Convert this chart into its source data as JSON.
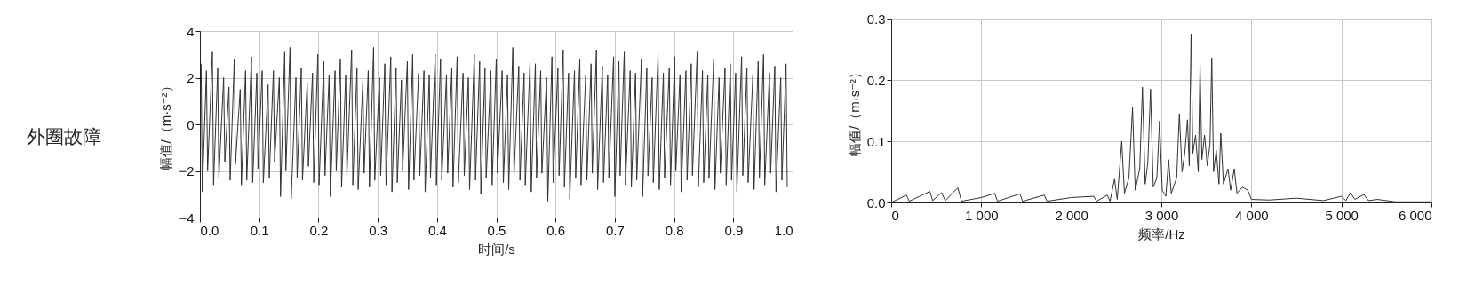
{
  "chart_data": [
    {
      "type": "other",
      "title": "外圈故障"
    },
    {
      "type": "line",
      "xlabel": "时间/s",
      "ylabel": "幅值/（m·s⁻²）",
      "xlim": [
        0,
        1
      ],
      "ylim": [
        -4,
        4
      ],
      "xticks": [
        {
          "value": 0,
          "label": "0.0"
        },
        0.1,
        0.2,
        0.3,
        0.4,
        0.5,
        0.6,
        0.7,
        0.8,
        0.9,
        {
          "value": 1,
          "label": "1.0"
        }
      ],
      "yticks": [
        -4,
        -2,
        0,
        2,
        4
      ],
      "grid": true,
      "series": [
        {
          "color": "#333333",
          "x": [
            0.002,
            0.004,
            0.011,
            0.013,
            0.021,
            0.023,
            0.03,
            0.032,
            0.04,
            0.042,
            0.049,
            0.051,
            0.058,
            0.06,
            0.068,
            0.07,
            0.077,
            0.079,
            0.087,
            0.089,
            0.096,
            0.098,
            0.105,
            0.107,
            0.115,
            0.117,
            0.124,
            0.126,
            0.134,
            0.136,
            0.143,
            0.145,
            0.152,
            0.154,
            0.162,
            0.164,
            0.171,
            0.173,
            0.181,
            0.183,
            0.19,
            0.192,
            0.199,
            0.201,
            0.209,
            0.211,
            0.218,
            0.22,
            0.228,
            0.23,
            0.237,
            0.239,
            0.246,
            0.248,
            0.256,
            0.258,
            0.265,
            0.267,
            0.275,
            0.277,
            0.284,
            0.286,
            0.293,
            0.295,
            0.303,
            0.305,
            0.312,
            0.314,
            0.322,
            0.324,
            0.331,
            0.333,
            0.34,
            0.342,
            0.35,
            0.352,
            0.359,
            0.361,
            0.369,
            0.371,
            0.378,
            0.38,
            0.387,
            0.389,
            0.397,
            0.399,
            0.406,
            0.408,
            0.416,
            0.418,
            0.425,
            0.427,
            0.434,
            0.436,
            0.444,
            0.446,
            0.453,
            0.455,
            0.463,
            0.465,
            0.472,
            0.474,
            0.481,
            0.483,
            0.491,
            0.493,
            0.5,
            0.502,
            0.51,
            0.512,
            0.519,
            0.521,
            0.528,
            0.53,
            0.538,
            0.54,
            0.547,
            0.549,
            0.557,
            0.559,
            0.566,
            0.568,
            0.575,
            0.577,
            0.585,
            0.587,
            0.594,
            0.596,
            0.604,
            0.606,
            0.613,
            0.615,
            0.622,
            0.624,
            0.632,
            0.634,
            0.641,
            0.643,
            0.651,
            0.653,
            0.66,
            0.662,
            0.669,
            0.671,
            0.679,
            0.681,
            0.688,
            0.69,
            0.698,
            0.7,
            0.707,
            0.709,
            0.716,
            0.718,
            0.726,
            0.728,
            0.735,
            0.737,
            0.745,
            0.747,
            0.754,
            0.756,
            0.763,
            0.765,
            0.773,
            0.775,
            0.782,
            0.784,
            0.792,
            0.794,
            0.801,
            0.803,
            0.81,
            0.812,
            0.82,
            0.822,
            0.829,
            0.831,
            0.839,
            0.841,
            0.848,
            0.85,
            0.857,
            0.859,
            0.867,
            0.869,
            0.876,
            0.878,
            0.886,
            0.888,
            0.895,
            0.897,
            0.904,
            0.906,
            0.914,
            0.916,
            0.923,
            0.925,
            0.933,
            0.935,
            0.942,
            0.944,
            0.951,
            0.953,
            0.961,
            0.963,
            0.97,
            0.972,
            0.98,
            0.982,
            0.989,
            0.991
          ],
          "values": [
            2.6,
            -2.9,
            2.3,
            -2.0,
            3.1,
            -2.6,
            2.4,
            -2.3,
            2.0,
            -1.6,
            1.6,
            -2.4,
            2.8,
            -1.7,
            1.5,
            -2.6,
            2.3,
            -2.4,
            2.9,
            -2.5,
            2.2,
            -1.9,
            2.3,
            -2.5,
            1.7,
            -2.3,
            2.3,
            -1.6,
            2.0,
            -3.1,
            3.1,
            -2.0,
            3.3,
            -3.2,
            2.0,
            -2.3,
            2.4,
            -2.4,
            1.8,
            -1.8,
            2.2,
            -2.5,
            3.0,
            -2.6,
            2.7,
            -2.2,
            2.1,
            -3.1,
            2.3,
            -2.0,
            2.8,
            -2.7,
            2.1,
            -2.2,
            3.2,
            -2.6,
            2.4,
            -2.8,
            1.9,
            -2.1,
            2.3,
            -2.7,
            3.3,
            -2.4,
            2.0,
            -2.2,
            2.6,
            -2.6,
            2.9,
            -2.9,
            2.4,
            -2.5,
            1.9,
            -2.0,
            2.7,
            -2.8,
            3.0,
            -2.4,
            2.2,
            -2.2,
            2.3,
            -2.9,
            2.1,
            -2.3,
            3.0,
            -2.6,
            2.8,
            -2.4,
            2.1,
            -2.1,
            2.4,
            -2.7,
            2.9,
            -2.5,
            2.2,
            -2.2,
            2.0,
            -2.8,
            3.0,
            -2.4,
            2.7,
            -3.0,
            2.4,
            -2.3,
            2.3,
            -2.6,
            2.8,
            -2.1,
            2.3,
            -2.5,
            2.1,
            -2.8,
            3.3,
            -2.2,
            2.5,
            -2.4,
            2.2,
            -2.6,
            2.7,
            -2.9,
            2.6,
            -2.3,
            2.3,
            -2.1,
            2.0,
            -3.3,
            2.9,
            -2.5,
            2.4,
            -2.2,
            3.2,
            -2.7,
            2.2,
            -3.2,
            2.3,
            -2.3,
            2.8,
            -2.6,
            2.1,
            -2.4,
            2.6,
            -2.1,
            3.2,
            -2.8,
            2.5,
            -2.5,
            2.1,
            -2.3,
            2.9,
            -3.1,
            2.7,
            -2.2,
            3.1,
            -2.6,
            2.3,
            -2.7,
            2.2,
            -2.4,
            2.8,
            -3.1,
            2.4,
            -2.2,
            2.0,
            -2.5,
            3.0,
            -2.8,
            2.2,
            -2.3,
            2.4,
            -2.6,
            2.9,
            -2.0,
            2.1,
            -2.9,
            2.3,
            -2.4,
            2.6,
            -2.2,
            3.1,
            -2.7,
            2.3,
            -2.5,
            2.1,
            -2.3,
            2.8,
            -2.8,
            2.0,
            -2.1,
            2.4,
            -2.6,
            2.6,
            -2.4,
            2.2,
            -2.9,
            2.9,
            -2.2,
            2.4,
            -2.5,
            2.1,
            -2.8,
            2.7,
            -2.3,
            3.0,
            -2.6,
            2.2,
            -2.1,
            2.5,
            -2.9,
            2.0,
            -2.4,
            2.6,
            -2.7
          ]
        }
      ]
    },
    {
      "type": "line",
      "xlabel": "频率/Hz",
      "ylabel": "幅值/（m·s⁻²）",
      "xlim": [
        0,
        6000
      ],
      "ylim": [
        0,
        0.3
      ],
      "xticks": [
        0,
        {
          "value": 1000,
          "label": "1 000"
        },
        {
          "value": 2000,
          "label": "2 000"
        },
        {
          "value": 3000,
          "label": "3 000"
        },
        {
          "value": 4000,
          "label": "4 000"
        },
        {
          "value": 5000,
          "label": "5 000"
        },
        {
          "value": 6000,
          "label": "6 000"
        }
      ],
      "yticks": [
        {
          "value": 0,
          "label": "0.0"
        },
        0.1,
        0.2,
        0.3
      ],
      "grid": true,
      "series": [
        {
          "color": "#333333",
          "x": [
            0,
            170,
            200,
            430,
            460,
            560,
            600,
            740,
            780,
            1000,
            1150,
            1180,
            1430,
            1460,
            1700,
            1730,
            2000,
            2250,
            2280,
            2400,
            2430,
            2480,
            2510,
            2560,
            2590,
            2640,
            2680,
            2710,
            2760,
            2790,
            2820,
            2850,
            2880,
            2910,
            2950,
            2980,
            3010,
            3050,
            3080,
            3110,
            3170,
            3200,
            3230,
            3260,
            3290,
            3310,
            3330,
            3350,
            3380,
            3410,
            3430,
            3450,
            3480,
            3510,
            3540,
            3560,
            3580,
            3610,
            3640,
            3660,
            3690,
            3740,
            3770,
            3810,
            3840,
            3900,
            3960,
            4000,
            4200,
            4500,
            4800,
            5000,
            5050,
            5100,
            5150,
            5250,
            5300,
            5400,
            5600,
            6000
          ],
          "values": [
            0,
            0.012,
            0.002,
            0.018,
            0.003,
            0.016,
            0.003,
            0.024,
            0.002,
            0.008,
            0.015,
            0.002,
            0.014,
            0.002,
            0.012,
            0.002,
            0.008,
            0.01,
            0.002,
            0.012,
            0.002,
            0.038,
            0.005,
            0.1,
            0.015,
            0.04,
            0.155,
            0.02,
            0.055,
            0.188,
            0.03,
            0.065,
            0.185,
            0.025,
            0.04,
            0.133,
            0.02,
            0.01,
            0.07,
            0.015,
            0.04,
            0.145,
            0.05,
            0.08,
            0.135,
            0.06,
            0.275,
            0.08,
            0.11,
            0.05,
            0.225,
            0.07,
            0.11,
            0.06,
            0.095,
            0.236,
            0.05,
            0.085,
            0.03,
            0.113,
            0.03,
            0.055,
            0.02,
            0.055,
            0.015,
            0.025,
            0.02,
            0.005,
            0.004,
            0.007,
            0.003,
            0.01,
            0.003,
            0.016,
            0.005,
            0.013,
            0.003,
            0.005,
            0.001,
            0.001
          ]
        }
      ]
    }
  ]
}
